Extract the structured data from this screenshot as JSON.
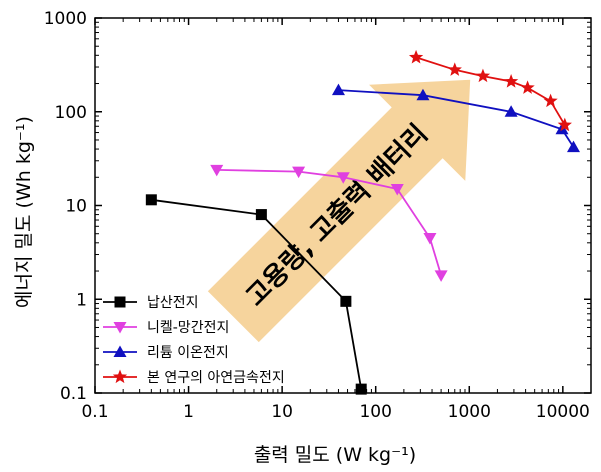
{
  "chart_data": {
    "type": "line",
    "xlabel": "출력 밀도 (W kg⁻¹)",
    "ylabel": "에너지 밀도 (Wh kg⁻¹)",
    "xscale": "log",
    "yscale": "log",
    "xlim": [
      0.1,
      20000
    ],
    "ylim": [
      0.1,
      1000
    ],
    "xticks": [
      "0.1",
      "1",
      "10",
      "100",
      "1000",
      "10000"
    ],
    "yticks": [
      "0.1",
      "1",
      "10",
      "100",
      "1000"
    ],
    "legend_position": "lower-left",
    "annotation": "고용량, 고출력 배터리",
    "annotation_color": "#f5cc8c",
    "series": [
      {
        "name": "납산전지",
        "color": "#000000",
        "marker": "square",
        "x": [
          0.4,
          6,
          48,
          70
        ],
        "y": [
          11.5,
          8,
          0.95,
          0.11
        ]
      },
      {
        "name": "니켈-망간전지",
        "color": "#e040e0",
        "marker": "triangle-down",
        "x": [
          2,
          15,
          45,
          170,
          380,
          500
        ],
        "y": [
          24,
          23,
          20,
          15,
          4.5,
          1.8
        ]
      },
      {
        "name": "리튬 이온전지",
        "color": "#1010c0",
        "marker": "triangle-up",
        "x": [
          40,
          320,
          2800,
          9800,
          13000
        ],
        "y": [
          170,
          150,
          100,
          65,
          42
        ]
      },
      {
        "name": "본 연구의 아연금속전지",
        "color": "#e01010",
        "marker": "star",
        "x": [
          270,
          700,
          1400,
          2800,
          4200,
          7400,
          10500
        ],
        "y": [
          380,
          280,
          240,
          210,
          180,
          130,
          72
        ]
      }
    ]
  }
}
